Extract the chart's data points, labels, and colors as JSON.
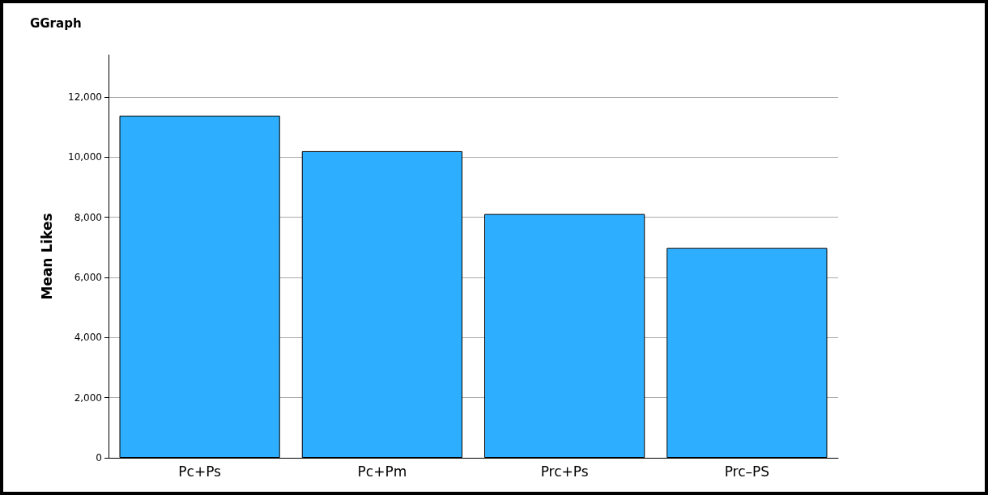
{
  "chart_data": {
    "type": "bar",
    "title": "GGraph",
    "ylabel": "Mean Likes",
    "categories": [
      "Pc+Ps",
      "Pc+Pm",
      "Prc+Ps",
      "Prc–PS"
    ],
    "values": [
      11380,
      10200,
      8110,
      6980
    ],
    "color": "#2eaefe",
    "ylim": [
      0,
      13400
    ],
    "yticks": [
      {
        "value": 0,
        "label": "0"
      },
      {
        "value": 2000,
        "label": "2,000"
      },
      {
        "value": 4000,
        "label": "4,000"
      },
      {
        "value": 6000,
        "label": "6,000"
      },
      {
        "value": 8000,
        "label": "8,000"
      },
      {
        "value": 10000,
        "label": "10,000"
      },
      {
        "value": 12000,
        "label": "12,000"
      }
    ],
    "grid": "y"
  }
}
